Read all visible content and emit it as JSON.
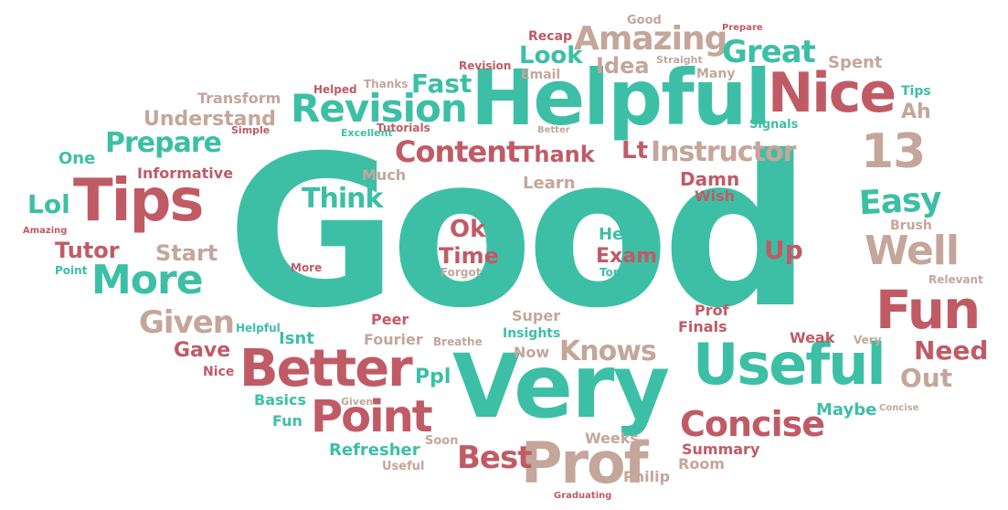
{
  "colors": {
    "teal": "#3dbfa6",
    "rose": "#c05b66",
    "tan": "#c4a69a"
  },
  "words": {
    "good_big": "Good",
    "helpful_big": "Helpful",
    "very_big": "Very",
    "useful": "Useful",
    "tips": "Tips",
    "nice_big": "Nice",
    "prof_big": "Prof",
    "fun_big": "Fun",
    "better_big": "Better",
    "point_big": "Point",
    "revision": "Revision",
    "amazing": "Amazing",
    "more_big": "More",
    "well": "Well",
    "concise_big": "Concise",
    "instructor": "Instructor",
    "content": "Content",
    "thirteen": "13",
    "great": "Great",
    "easy": "Easy",
    "prepare": "Prepare",
    "understand": "Understand",
    "think": "Think",
    "thank": "Thank",
    "knows": "Knows",
    "given_big": "Given",
    "best": "Best",
    "lol": "Lol",
    "tutor": "Tutor",
    "start": "Start",
    "need": "Need",
    "out": "Out",
    "up": "Up",
    "ok": "Ok",
    "time": "Time",
    "exam": "Exam",
    "helps": "Helps",
    "fast": "Fast",
    "look": "Look",
    "idea": "Idea",
    "lt": "Lt",
    "learn": "Learn",
    "damn": "Damn",
    "wish": "Wish",
    "much": "Much",
    "informative": "Informative",
    "one": "One",
    "transform": "Transform",
    "tutorials": "Tutorials",
    "excellent": "Excellent",
    "helped": "Helped",
    "thanks": "Thanks",
    "revision_small": "Revision",
    "email": "Email",
    "recap": "Recap",
    "good_small": "Good",
    "prepare_small": "Prepare",
    "straight": "Straight",
    "many": "Many",
    "spent": "Spent",
    "tips_small": "Tips",
    "ah": "Ah",
    "signals": "Signals",
    "better_small": "Better",
    "simple": "Simple",
    "amazing_small": "Amazing",
    "point_small": "Point",
    "more_small": "More",
    "forgot": "Forgot",
    "topics": "Topics",
    "brush": "Brush",
    "relevant": "Relevant",
    "prof_small": "Prof",
    "finals": "Finals",
    "weak": "Weak",
    "very_small": "Very",
    "super": "Super",
    "insights": "Insights",
    "now": "Now",
    "peer": "Peer",
    "fourier": "Fourier",
    "breathe": "Breathe",
    "isnt": "Isnt",
    "helpful_small": "Helpful",
    "gave": "Gave",
    "nice_small": "Nice",
    "ppl": "Ppl",
    "basics": "Basics",
    "given_small": "Given",
    "fun_small": "Fun",
    "maybe": "Maybe",
    "concise_small": "Concise",
    "refresher": "Refresher",
    "soon": "Soon",
    "weeks": "Weeks",
    "summary": "Summary",
    "room": "Room",
    "useful_small": "Useful",
    "philip": "Philip",
    "graduating": "Graduating"
  }
}
